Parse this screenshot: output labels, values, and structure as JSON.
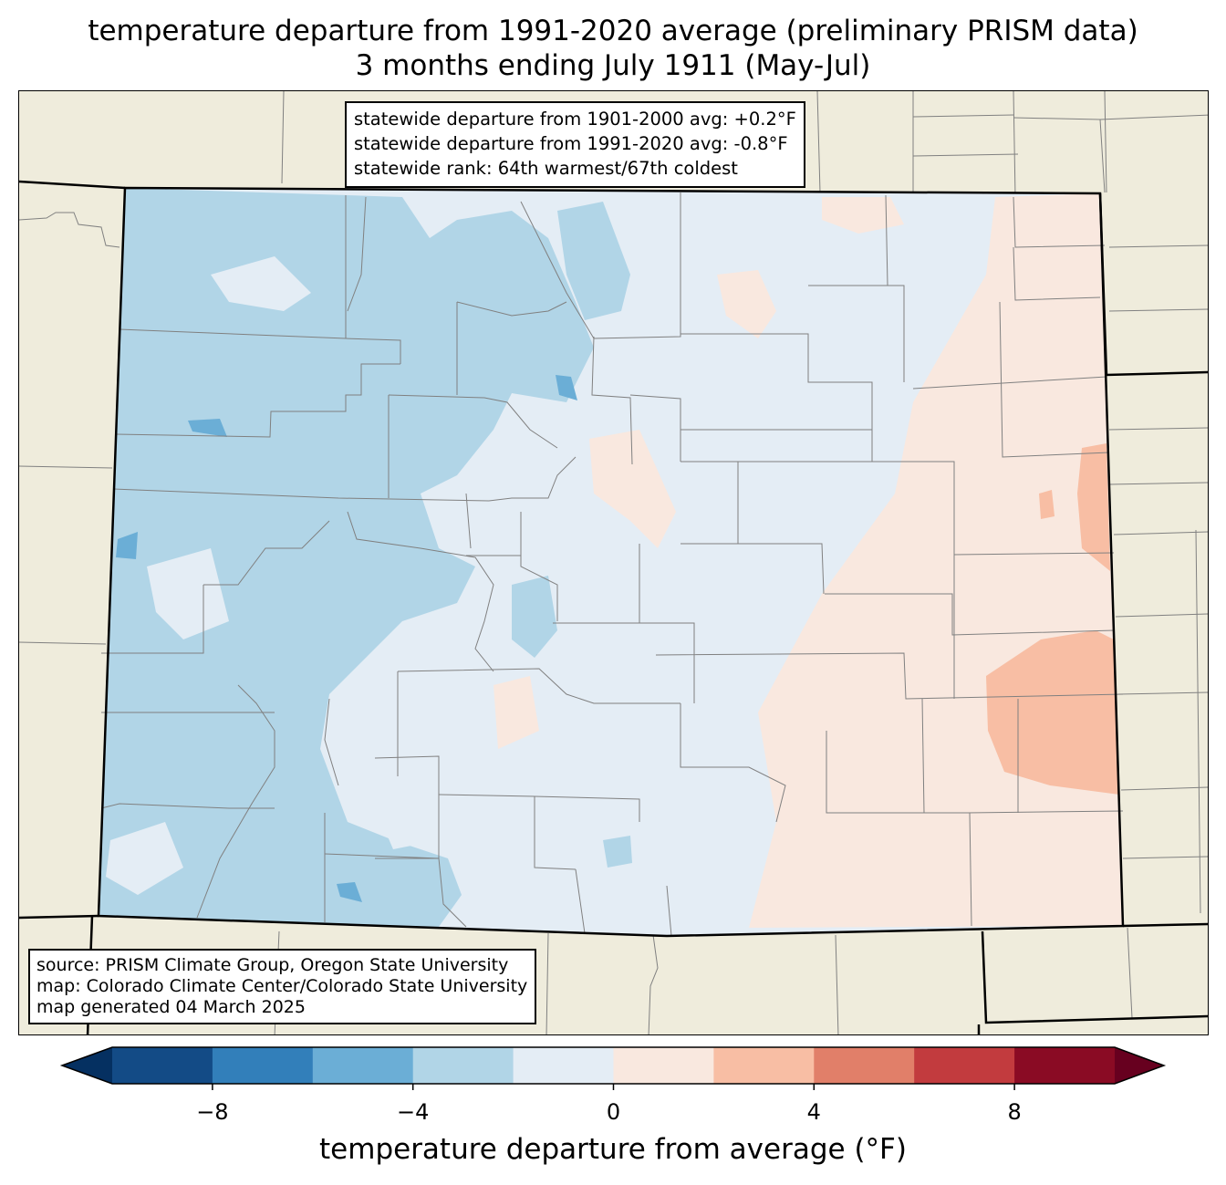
{
  "title": {
    "line1": "temperature departure from 1991-2020 average (preliminary PRISM data)",
    "line2": "3 months ending July 1911 (May-Jul)"
  },
  "stats_box": {
    "line1": "statewide departure from 1901-2000 avg: +0.2°F",
    "line2": "statewide departure from 1991-2020 avg: -0.8°F",
    "line3": "statewide rank: 64th warmest/67th coldest"
  },
  "source_box": {
    "line1": "source: PRISM Climate Group, Oregon State University",
    "line2": "map: Colorado Climate Center/Colorado State University",
    "line3": "map generated 04 March 2025"
  },
  "colorbar": {
    "label": "temperature departure from average (°F)",
    "ticks": [
      "−8",
      "−4",
      "0",
      "4",
      "8"
    ],
    "tick_values": [
      -8,
      -4,
      0,
      4,
      8
    ],
    "range": [
      -10,
      10
    ],
    "bin_width": 2,
    "bins": [
      {
        "from": -10,
        "to": -8,
        "color": "#134b86"
      },
      {
        "from": -8,
        "to": -6,
        "color": "#327fba"
      },
      {
        "from": -6,
        "to": -4,
        "color": "#6baed6"
      },
      {
        "from": -4,
        "to": -2,
        "color": "#b1d5e7"
      },
      {
        "from": -2,
        "to": 0,
        "color": "#e4edf5"
      },
      {
        "from": 0,
        "to": 2,
        "color": "#f9e8df"
      },
      {
        "from": 2,
        "to": 4,
        "color": "#f8bea4"
      },
      {
        "from": 4,
        "to": 6,
        "color": "#e17f69"
      },
      {
        "from": 6,
        "to": 8,
        "color": "#c23b3e"
      },
      {
        "from": 8,
        "to": 10,
        "color": "#8a0b24"
      }
    ],
    "under_color": "#053061",
    "over_color": "#67001f"
  },
  "map_colors": {
    "background": "#efecdc",
    "state_border": "#000000",
    "county_border": "#808080"
  }
}
